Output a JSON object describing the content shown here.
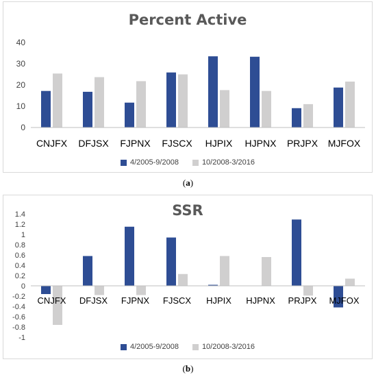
{
  "captions": {
    "a": "a",
    "b": "b"
  },
  "colors": {
    "series1": "#2e4d94",
    "series2": "#d0cfcf",
    "axis": "#bfbfbf",
    "text": "#000000"
  },
  "chart_data": [
    {
      "type": "bar",
      "title": "Percent Active",
      "categories": [
        "CNJFX",
        "DFJSX",
        "FJPNX",
        "FJSCX",
        "HJPIX",
        "HJPNX",
        "PRJPX",
        "MJFOX"
      ],
      "series": [
        {
          "name": "4/2005-9/2008",
          "values": [
            17.2,
            16.8,
            11.7,
            25.9,
            33.5,
            33.3,
            9.1,
            18.8
          ]
        },
        {
          "name": "10/2008-3/2016",
          "values": [
            25.4,
            23.7,
            21.8,
            25.0,
            17.6,
            17.2,
            11.0,
            21.6
          ]
        }
      ],
      "ylim": [
        0,
        40
      ],
      "yticks": [
        0,
        10,
        20,
        30,
        40
      ],
      "ytick_labels": [
        "0",
        "10",
        "20",
        "30",
        "40"
      ],
      "legend_position": "bottom",
      "grid": false
    },
    {
      "type": "bar",
      "title": "SSR",
      "categories": [
        "CNJFX",
        "DFJSX",
        "FJPNX",
        "FJSCX",
        "HJPIX",
        "HJPNX",
        "PRJPX",
        "MJFOX"
      ],
      "series": [
        {
          "name": "4/2005-9/2008",
          "values": [
            -0.16,
            0.58,
            1.15,
            0.94,
            0.02,
            0.0,
            1.29,
            -0.42
          ]
        },
        {
          "name": "10/2008-3/2016",
          "values": [
            -0.76,
            -0.18,
            -0.18,
            0.23,
            0.58,
            0.56,
            -0.19,
            0.14
          ]
        }
      ],
      "ylim": [
        -1,
        1.4
      ],
      "yticks": [
        -1,
        -0.8,
        -0.6,
        -0.4,
        -0.2,
        0,
        0.2,
        0.4,
        0.6,
        0.8,
        1,
        1.2,
        1.4
      ],
      "ytick_labels": [
        "-1",
        "-0.8",
        "-0.6",
        "-0.4",
        "-0.2",
        "0",
        "0.2",
        "0.4",
        "0.6",
        "0.8",
        "1",
        "1.2",
        "1.4"
      ],
      "legend_position": "bottom",
      "grid": false
    }
  ]
}
